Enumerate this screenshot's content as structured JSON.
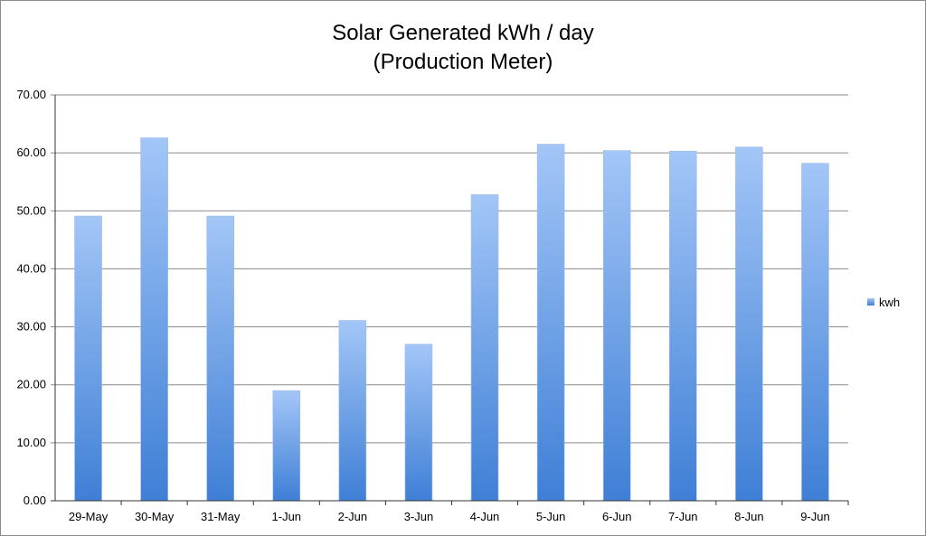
{
  "chart_data": {
    "type": "bar",
    "title": "Solar Generated kWh / day",
    "subtitle": "(Production Meter)",
    "xlabel": "",
    "ylabel": "",
    "categories": [
      "29-May",
      "30-May",
      "31-May",
      "1-Jun",
      "2-Jun",
      "3-Jun",
      "4-Jun",
      "5-Jun",
      "6-Jun",
      "7-Jun",
      "8-Jun",
      "9-Jun"
    ],
    "series": [
      {
        "name": "kwh",
        "values": [
          49.1,
          62.6,
          49.1,
          19.0,
          31.1,
          27.0,
          52.8,
          61.5,
          60.4,
          60.3,
          61.0,
          58.2
        ]
      }
    ],
    "ylim": [
      0,
      70
    ],
    "yticks": [
      "0.00",
      "10.00",
      "20.00",
      "30.00",
      "40.00",
      "50.00",
      "60.00",
      "70.00"
    ],
    "grid": true,
    "legend": "right",
    "colors": {
      "bar_top": "#a3c6f7",
      "bar_bottom": "#3f7fd6",
      "grid": "#8a8a8a"
    }
  }
}
